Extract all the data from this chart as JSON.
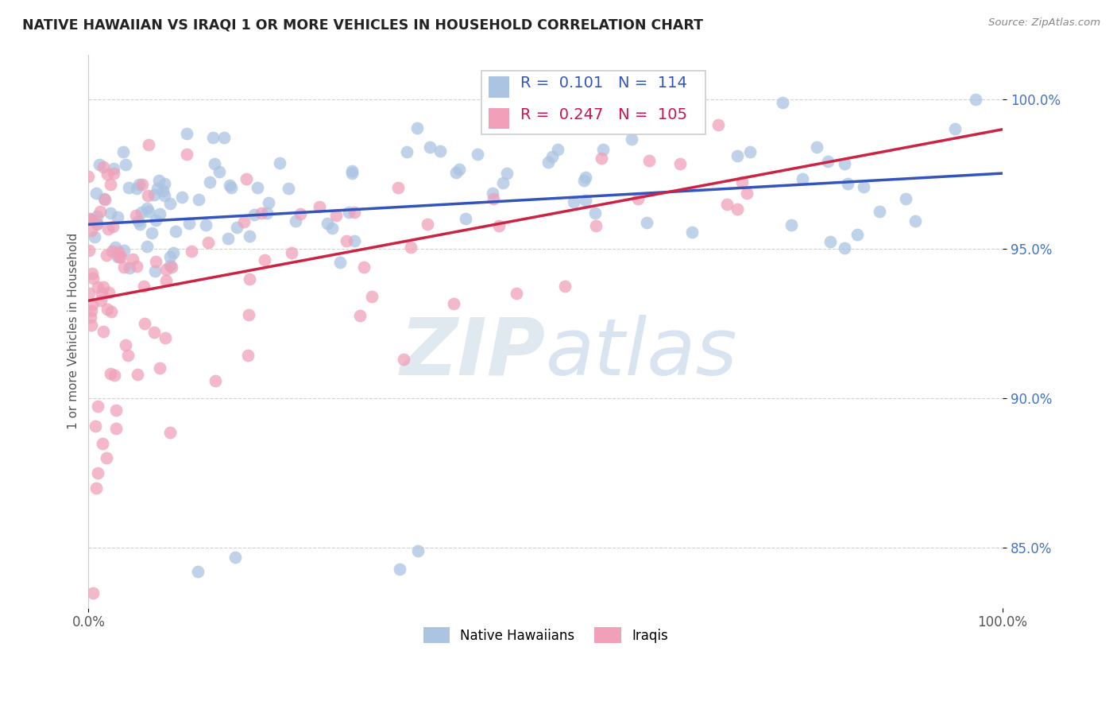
{
  "title": "NATIVE HAWAIIAN VS IRAQI 1 OR MORE VEHICLES IN HOUSEHOLD CORRELATION CHART",
  "source": "Source: ZipAtlas.com",
  "ylabel": "1 or more Vehicles in Household",
  "xlim": [
    0.0,
    100.0
  ],
  "ylim": [
    83.0,
    101.5
  ],
  "yticks": [
    85.0,
    90.0,
    95.0,
    100.0
  ],
  "xticks": [
    0.0,
    100.0
  ],
  "xticklabels": [
    "0.0%",
    "100.0%"
  ],
  "blue_R": 0.101,
  "blue_N": 114,
  "pink_R": 0.247,
  "pink_N": 105,
  "blue_color": "#aac4e2",
  "pink_color": "#f0a0b8",
  "blue_line_color": "#3355bb",
  "pink_line_color": "#cc2244",
  "legend_label_blue": "Native Hawaiians",
  "legend_label_pink": "Iraqis",
  "watermark_zip": "ZIP",
  "watermark_atlas": "atlas",
  "background_color": "#ffffff",
  "ytick_color": "#4472c4",
  "xtick_color": "#555555"
}
